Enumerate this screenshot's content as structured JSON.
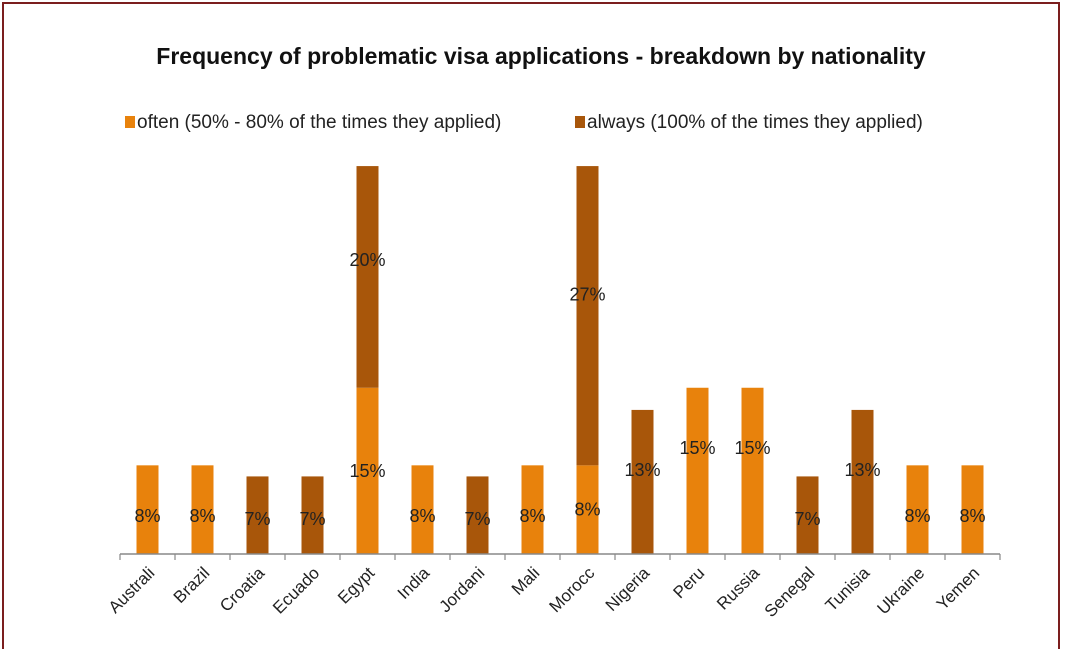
{
  "chart_data": {
    "type": "bar",
    "stacked": true,
    "title": "Frequency of problematic visa applications - breakdown by nationality",
    "xlabel": "",
    "ylabel": "",
    "legend_position": "top",
    "grid": false,
    "ylim": [
      0,
      36
    ],
    "categories": [
      "Australi",
      "Brazil",
      "Croatia",
      "Ecuado",
      "Egypt",
      "India",
      "Jordani",
      "Mali",
      "Morocc",
      "Nigeria",
      "Peru",
      "Russia",
      "Senegal",
      "Tunisia",
      "Ukraine",
      "Yemen"
    ],
    "series": [
      {
        "name": "often (50% - 80% of the times they applied)",
        "color": "#e8820c",
        "values": [
          8,
          8,
          null,
          null,
          15,
          8,
          null,
          8,
          8,
          null,
          15,
          15,
          null,
          null,
          8,
          8
        ],
        "labels": [
          "8%",
          "8%",
          "",
          "",
          "15%",
          "8%",
          "",
          "8%",
          "8%",
          "",
          "15%",
          "15%",
          "",
          "",
          "8%",
          "8%"
        ]
      },
      {
        "name": "always (100% of the times they applied)",
        "color": "#a8560a",
        "values": [
          null,
          null,
          7,
          7,
          20,
          null,
          7,
          null,
          27,
          13,
          null,
          null,
          7,
          13,
          null,
          null
        ],
        "labels": [
          "",
          "",
          "7%",
          "7%",
          "20%",
          "",
          "7%",
          "",
          "27%",
          "13%",
          "",
          "",
          "7%",
          "13%",
          "",
          ""
        ]
      }
    ]
  }
}
